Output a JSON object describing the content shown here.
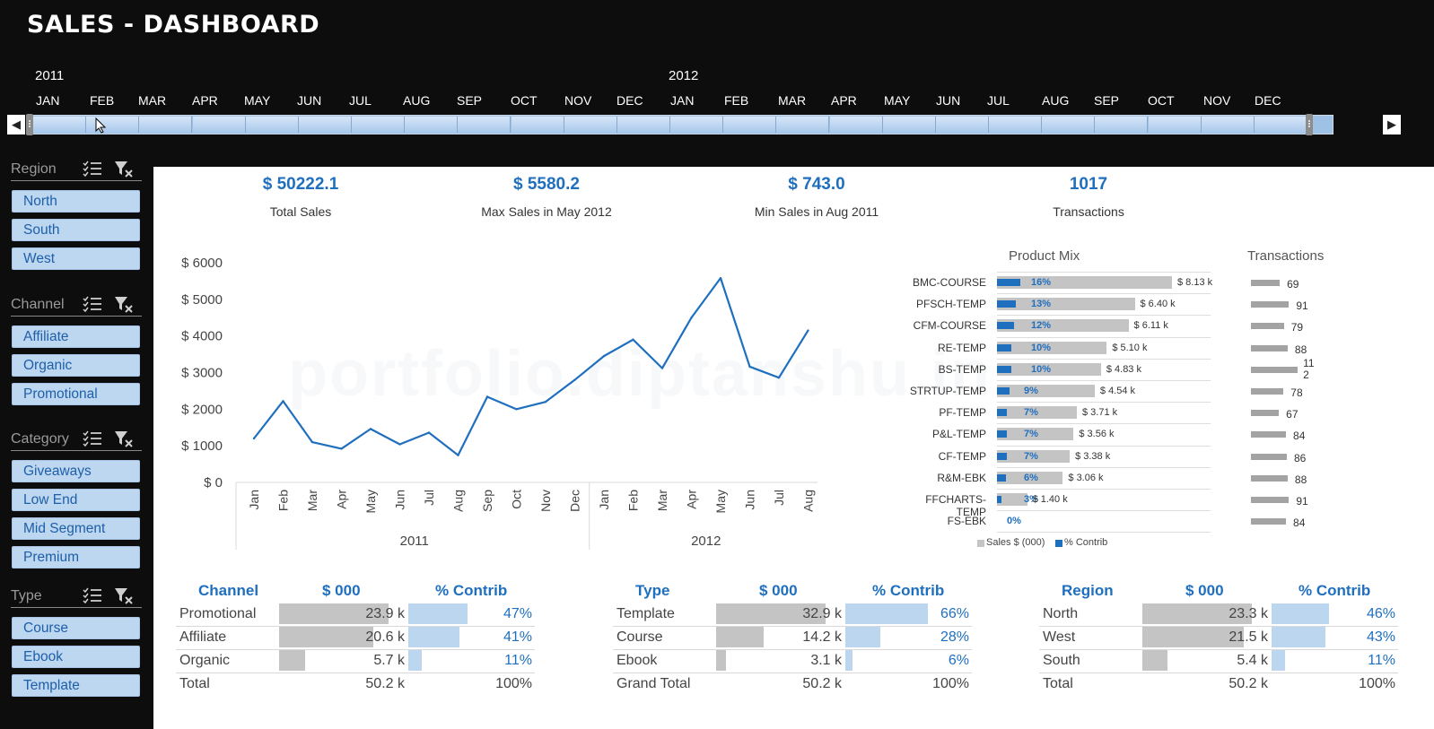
{
  "header": {
    "title": "SALES - DASHBOARD"
  },
  "timeline": {
    "years": [
      "2011",
      "2012"
    ],
    "months": [
      "JAN",
      "FEB",
      "MAR",
      "APR",
      "MAY",
      "JUN",
      "JUL",
      "AUG",
      "SEP",
      "OCT",
      "NOV",
      "DEC",
      "JAN",
      "FEB",
      "MAR",
      "APR",
      "MAY",
      "JUN",
      "JUL",
      "AUG",
      "SEP",
      "OCT",
      "NOV",
      "DEC"
    ]
  },
  "slicers": [
    {
      "name": "Region",
      "items": [
        "North",
        "South",
        "West"
      ]
    },
    {
      "name": "Channel",
      "items": [
        "Affiliate",
        "Organic",
        "Promotional"
      ]
    },
    {
      "name": "Category",
      "items": [
        "Giveaways",
        "Low End",
        "Mid Segment",
        "Premium"
      ]
    },
    {
      "name": "Type",
      "items": [
        "Course",
        "Ebook",
        "Template"
      ]
    }
  ],
  "kpis": [
    {
      "value": "$ 50222.1",
      "label": "Total Sales"
    },
    {
      "value": "$ 5580.2",
      "label": "Max Sales in May 2012"
    },
    {
      "value": "$ 743.0",
      "label": "Min Sales in Aug 2011"
    },
    {
      "value": "1017",
      "label": "Transactions"
    }
  ],
  "watermark": "portfolio.diptanshu.in",
  "colors": {
    "accent": "#1f6fbf",
    "slicer_bg": "#bed7f0",
    "bar_gray": "#c4c4c4",
    "bar_light_blue": "#bcd6ef"
  },
  "chart_data": [
    {
      "type": "line",
      "title": "",
      "x": [
        "Jan",
        "Feb",
        "Mar",
        "Apr",
        "May",
        "Jun",
        "Jul",
        "Aug",
        "Sep",
        "Oct",
        "Nov",
        "Dec",
        "Jan",
        "Feb",
        "Mar",
        "Apr",
        "May",
        "Jun",
        "Jul",
        "Aug"
      ],
      "groups": [
        {
          "label": "2011",
          "count": 12
        },
        {
          "label": "2012",
          "count": 8
        }
      ],
      "series": [
        {
          "values": [
            1200,
            2220,
            1100,
            920,
            1460,
            1040,
            1360,
            743,
            2340,
            2000,
            2200,
            2800,
            3450,
            3900,
            3120,
            4500,
            5580,
            3160,
            2860,
            4150
          ]
        }
      ],
      "y_ticks": [
        "$ 6000",
        "$ 5000",
        "$ 4000",
        "$ 3000",
        "$ 2000",
        "$ 1000",
        "$ 0"
      ],
      "ylim": [
        0,
        6000
      ]
    },
    {
      "type": "bar",
      "title": "Product Mix",
      "categories": [
        "BMC-COURSE",
        "PFSCH-TEMP",
        "CFM-COURSE",
        "RE-TEMP",
        "BS-TEMP",
        "STRTUP-TEMP",
        "PF-TEMP",
        "P&L-TEMP",
        "CF-TEMP",
        "R&M-EBK",
        "FFCHARTS-TEMP",
        "FS-EBK"
      ],
      "series": [
        {
          "name": "Sales $ (000)",
          "values": [
            8.13,
            6.4,
            6.11,
            5.1,
            4.83,
            4.54,
            3.71,
            3.56,
            3.38,
            3.06,
            1.4,
            0
          ],
          "labels": [
            "$ 8.13 k",
            "$ 6.40 k",
            "$ 6.11 k",
            "$ 5.10 k",
            "$ 4.83 k",
            "$ 4.54 k",
            "$ 3.71 k",
            "$ 3.56 k",
            "$ 3.38 k",
            "$ 3.06 k",
            "$ 1.40 k",
            ""
          ]
        },
        {
          "name": "% Contrib",
          "values": [
            16,
            13,
            12,
            10,
            10,
            9,
            7,
            7,
            7,
            6,
            3,
            0
          ],
          "labels": [
            "16%",
            "13%",
            "12%",
            "10%",
            "10%",
            "9%",
            "7%",
            "7%",
            "7%",
            "6%",
            "3%",
            "0%"
          ]
        }
      ],
      "legend": "bottom"
    },
    {
      "type": "bar",
      "title": "Transactions",
      "categories": [
        "BMC-COURSE",
        "PFSCH-TEMP",
        "CFM-COURSE",
        "RE-TEMP",
        "BS-TEMP",
        "STRTUP-TEMP",
        "PF-TEMP",
        "P&L-TEMP",
        "CF-TEMP",
        "R&M-EBK",
        "FFCHARTS-TEMP",
        "FS-EBK"
      ],
      "values": [
        69,
        91,
        79,
        88,
        112,
        78,
        67,
        84,
        86,
        88,
        91,
        84
      ]
    }
  ],
  "tables": [
    {
      "headers": [
        "Channel",
        "$ 000",
        "% Contrib"
      ],
      "rows": [
        {
          "name": "Promotional",
          "value": "23.9 k",
          "pct": "47%",
          "v": 23.9,
          "p": 47
        },
        {
          "name": "Affiliate",
          "value": "20.6 k",
          "pct": "41%",
          "v": 20.6,
          "p": 41
        },
        {
          "name": "Organic",
          "value": "5.7 k",
          "pct": "11%",
          "v": 5.7,
          "p": 11
        }
      ],
      "total": {
        "name": "Total",
        "value": "50.2 k",
        "pct": "100%"
      }
    },
    {
      "headers": [
        "Type",
        "$ 000",
        "% Contrib"
      ],
      "rows": [
        {
          "name": "Template",
          "value": "32.9 k",
          "pct": "66%",
          "v": 32.9,
          "p": 66
        },
        {
          "name": "Course",
          "value": "14.2 k",
          "pct": "28%",
          "v": 14.2,
          "p": 28
        },
        {
          "name": "Ebook",
          "value": "3.1 k",
          "pct": "6%",
          "v": 3.1,
          "p": 6
        }
      ],
      "total": {
        "name": "Grand Total",
        "value": "50.2 k",
        "pct": "100%"
      }
    },
    {
      "headers": [
        "Region",
        "$ 000",
        "% Contrib"
      ],
      "rows": [
        {
          "name": "North",
          "value": "23.3 k",
          "pct": "46%",
          "v": 23.3,
          "p": 46
        },
        {
          "name": "West",
          "value": "21.5 k",
          "pct": "43%",
          "v": 21.5,
          "p": 43
        },
        {
          "name": "South",
          "value": "5.4 k",
          "pct": "11%",
          "v": 5.4,
          "p": 11
        }
      ],
      "total": {
        "name": "Total",
        "value": "50.2 k",
        "pct": "100%"
      }
    }
  ]
}
